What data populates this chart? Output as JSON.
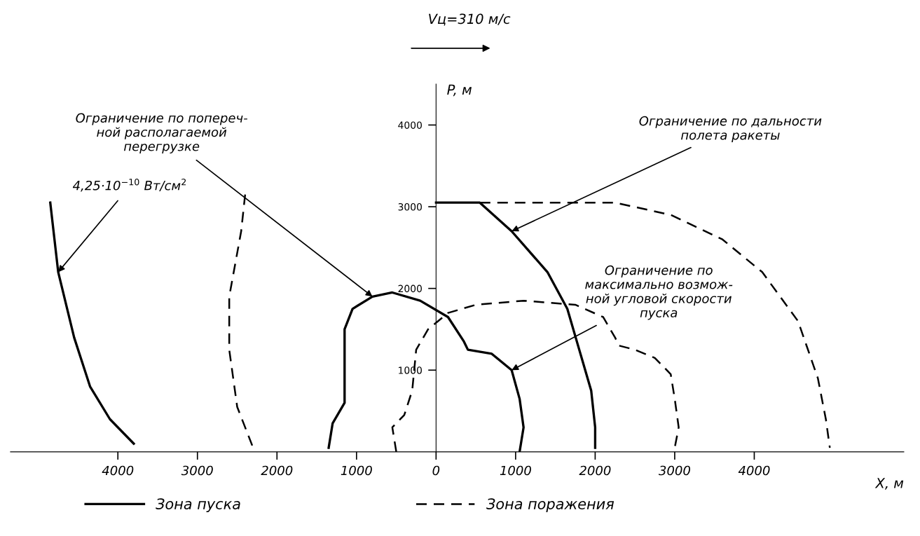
{
  "chart_data": {
    "type": "line",
    "xlabel": "X, м",
    "ylabel": "P, м",
    "xlim": [
      -5350,
      5880
    ],
    "ylim": [
      0,
      4500
    ],
    "xticks": [
      {
        "value": -4000,
        "label": "4000"
      },
      {
        "value": -3000,
        "label": "3000"
      },
      {
        "value": -2000,
        "label": "2000"
      },
      {
        "value": -1000,
        "label": "1000"
      },
      {
        "value": 0,
        "label": "0"
      },
      {
        "value": 1000,
        "label": "1000"
      },
      {
        "value": 2000,
        "label": "2000"
      },
      {
        "value": 3000,
        "label": "3000"
      },
      {
        "value": 4000,
        "label": "4000"
      }
    ],
    "yticks": [
      1000,
      2000,
      3000,
      4000
    ],
    "grid": false,
    "legend": "bottom",
    "marker": "none",
    "series": [
      {
        "name": "Зона пуска",
        "color": "#000000",
        "line_style": "solid",
        "x": [
          -4850,
          -4750,
          -4550,
          -4350,
          -4100,
          -3800,
          null,
          -1350,
          -1300,
          -1150,
          -1150,
          -1150,
          -1050,
          -800,
          -550,
          -200,
          150,
          350,
          400,
          700,
          950,
          1050,
          1100,
          1050,
          null,
          0,
          550,
          950,
          1400,
          1650,
          1800,
          1950,
          2000,
          2000
        ],
        "values": [
          3050,
          2200,
          1400,
          800,
          400,
          100,
          null,
          50,
          350,
          600,
          1000,
          1500,
          1750,
          1900,
          1950,
          1850,
          1650,
          1350,
          1250,
          1200,
          1000,
          650,
          300,
          0,
          null,
          3050,
          3050,
          2700,
          2200,
          1750,
          1250,
          750,
          300,
          50
        ]
      },
      {
        "name": "Зона поражения",
        "color": "#000000",
        "line_style": "dashed",
        "x": [
          -2400,
          -2450,
          -2600,
          -2600,
          -2500,
          -2300,
          null,
          -500,
          -550,
          -400,
          -300,
          -250,
          -100,
          150,
          500,
          1100,
          1750,
          2100,
          2250,
          2300,
          2500,
          2750,
          2950,
          3000,
          3050,
          3000,
          null,
          550,
          2250,
          2950,
          3600,
          4100,
          4550,
          4800,
          4900,
          4950
        ],
        "values": [
          3150,
          2700,
          1900,
          1250,
          550,
          50,
          null,
          0,
          300,
          450,
          750,
          1250,
          1500,
          1700,
          1800,
          1850,
          1800,
          1650,
          1400,
          1300,
          1250,
          1150,
          950,
          650,
          300,
          50,
          null,
          3050,
          3050,
          2900,
          2600,
          2200,
          1600,
          900,
          400,
          50
        ]
      }
    ],
    "annotations": [
      "Vц=310 м/с",
      {
        "text": "Ограничение по попереч-\nной располагаемой\nперегрузке",
        "x": -800,
        "y": 1900
      },
      {
        "text": "4,25·10$^{−10}$ Вт/см$^{2}$",
        "x": -4750,
        "y": 2200
      },
      {
        "text": "Ограничение по дальности\nполета ракеты",
        "x": 950,
        "y": 2700
      },
      {
        "text": "Ограничение по\nмаксимально возмож-\nной угловой скорости\nпуска",
        "x": 950,
        "y": 1000
      }
    ]
  }
}
